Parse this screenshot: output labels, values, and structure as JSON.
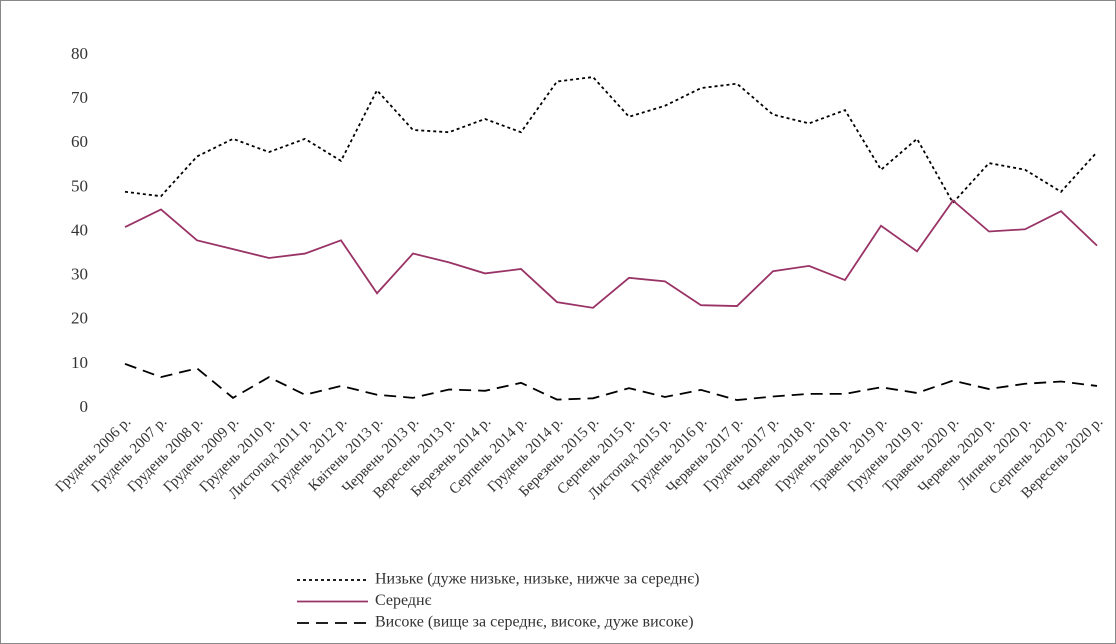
{
  "chart_data": {
    "type": "line",
    "categories": [
      "Грудень 2006 р.",
      "Грудень 2007 р.",
      "Грудень 2008 р.",
      "Грудень 2009 р.",
      "Грудень 2010 р.",
      "Листопад 2011 р.",
      "Грудень 2012 р.",
      "Квітень 2013 р.",
      "Червень 2013 р.",
      "Вересень 2013 р.",
      "Березень 2014 р.",
      "Серпень 2014 р.",
      "Грудень 2014 р.",
      "Березень 2015 р.",
      "Серпень 2015 р.",
      "Листопад 2015 р.",
      "Грудень 2016 р.",
      "Червень 2017 р.",
      "Грудень 2017 р.",
      "Червень 2018 р.",
      "Грудень 2018 р.",
      "Травень 2019 р.",
      "Грудень 2019 р.",
      "Травень 2020 р.",
      "Червень 2020 р.",
      "Липень 2020 р.",
      "Серпень 2020 р.",
      "Вересень 2020 р."
    ],
    "series": [
      {
        "name": "Низьке (дуже низьке, низьке, нижче за середнє)",
        "color": "#000000",
        "dash": "short",
        "values": [
          49,
          48,
          57,
          61,
          58,
          61,
          56,
          72,
          63,
          62.5,
          65.5,
          62.5,
          74,
          75,
          66,
          68.5,
          72.5,
          73.5,
          66.5,
          64.5,
          67.5,
          54,
          61,
          46.5,
          55.5,
          54,
          49,
          58
        ]
      },
      {
        "name": "Середнє",
        "color": "#993366",
        "dash": "solid",
        "values": [
          41,
          45,
          38,
          36,
          34,
          35,
          38,
          26,
          35,
          33,
          30.5,
          31.5,
          24,
          22.7,
          29.5,
          28.7,
          23.3,
          23.1,
          31,
          32.2,
          29,
          41.3,
          35.5,
          47,
          40,
          40.5,
          44.6,
          36.8
        ]
      },
      {
        "name": "Високе (вище за середнє, високе, дуже високе)",
        "color": "#000000",
        "dash": "long",
        "values": [
          10,
          7,
          9,
          2.3,
          7,
          3,
          5,
          3,
          2.3,
          4.2,
          3.9,
          5.7,
          1.9,
          2.2,
          4.5,
          2.5,
          4.1,
          1.8,
          2.6,
          3.2,
          3.2,
          4.7,
          3.4,
          6.2,
          4.3,
          5.5,
          6,
          5
        ]
      }
    ],
    "ylim": [
      0,
      80
    ],
    "yticks": [
      0,
      10,
      20,
      30,
      40,
      50,
      60,
      70,
      80
    ],
    "grid": false,
    "legend": "bottom"
  }
}
